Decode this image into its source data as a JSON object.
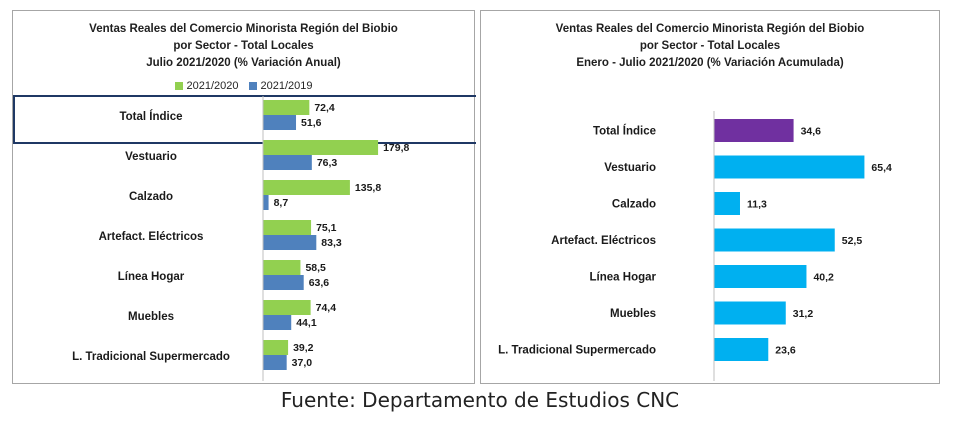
{
  "source": "Fuente: Departamento de Estudios CNC",
  "colors": {
    "series_2021_2020": "#92d050",
    "series_2021_2019": "#4f81bd",
    "total_accumulated": "#7030a0",
    "sector_accumulated": "#00b0f0",
    "highlight_border": "#1f3864"
  },
  "chart_data": [
    {
      "type": "bar",
      "orientation": "horizontal",
      "title": [
        "Ventas Reales del Comercio Minorista  Región del Biobio",
        "por Sector - Total Locales",
        "Julio 2021/2020 (% Variación Anual)"
      ],
      "categories": [
        "Total Índice",
        "Vestuario",
        "Calzado",
        "Artefact. Eléctricos",
        "Línea Hogar",
        "Muebles",
        "L. Tradicional Supermercado"
      ],
      "series": [
        {
          "name": "2021/2020",
          "values": [
            72.4,
            179.8,
            135.8,
            75.1,
            58.5,
            74.4,
            39.2
          ],
          "labels": [
            "72,4",
            "179,8",
            "135,8",
            "75,1",
            "58,5",
            "74,4",
            "39,2"
          ]
        },
        {
          "name": "2021/2019",
          "values": [
            51.6,
            76.3,
            8.7,
            83.3,
            63.6,
            44.1,
            37.0
          ],
          "labels": [
            "51,6",
            "76,3",
            "8,7",
            "83,3",
            "63,6",
            "44,1",
            "37,0"
          ]
        }
      ],
      "legend": "top-center",
      "highlighted_category": "Total Índice"
    },
    {
      "type": "bar",
      "orientation": "horizontal",
      "title": [
        "Ventas Reales del Comercio Minorista Región del Biobio",
        "por Sector - Total Locales",
        "Enero - Julio 2021/2020  (% Variación Acumulada)"
      ],
      "categories": [
        "Total Índice",
        "Vestuario",
        "Calzado",
        "Artefact. Eléctricos",
        "Línea Hogar",
        "Muebles",
        "L. Tradicional Supermercado"
      ],
      "values": [
        34.6,
        65.4,
        11.3,
        52.5,
        40.2,
        31.2,
        23.6
      ],
      "labels": [
        "34,6",
        "65,4",
        "11,3",
        "52,5",
        "40,2",
        "31,2",
        "23,6"
      ]
    }
  ]
}
